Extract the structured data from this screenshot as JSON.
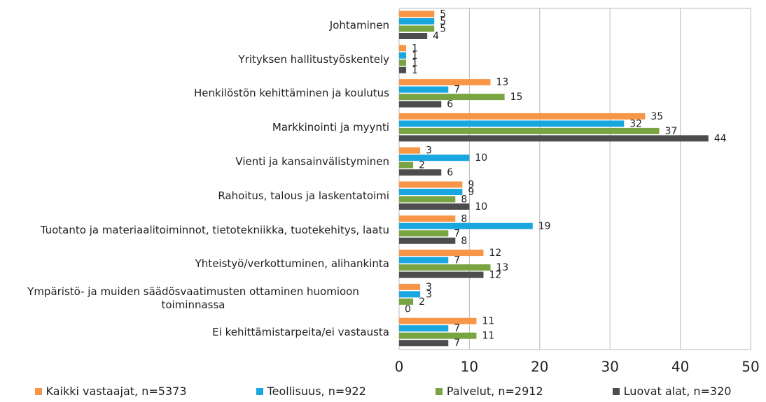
{
  "chart_data": {
    "type": "bar",
    "orientation": "horizontal",
    "categories": [
      "Johtaminen",
      "Yrityksen hallitustyöskentely",
      "Henkilöstön kehittäminen ja koulutus",
      "Markkinointi ja myynti",
      "Vienti ja kansainvälistyminen",
      "Rahoitus, talous ja laskentatoimi",
      "Tuotanto ja materiaalitoiminnot, tietotekniikka, tuotekehitys, laatu",
      "Yhteistyö/verkottuminen, alihankinta",
      "Ympäristö- ja muiden säädösvaatimusten ottaminen huomioon toiminnassa",
      "Ei kehittämistarpeita/ei vastausta"
    ],
    "series": [
      {
        "name": "Kaikki vastaajat, n=5373",
        "color": "#f79646",
        "values": [
          5,
          1,
          13,
          35,
          3,
          9,
          8,
          12,
          3,
          11
        ]
      },
      {
        "name": "Teollisuus, n=922",
        "color": "#1aa6df",
        "values": [
          5,
          1,
          7,
          32,
          10,
          9,
          19,
          7,
          3,
          7
        ]
      },
      {
        "name": "Palvelut, n=2912",
        "color": "#78a441",
        "values": [
          5,
          1,
          15,
          37,
          2,
          8,
          7,
          13,
          2,
          11
        ]
      },
      {
        "name": "Luovat alat, n=320",
        "color": "#4d4d4d",
        "values": [
          4,
          1,
          6,
          44,
          6,
          10,
          8,
          12,
          0,
          7
        ]
      }
    ],
    "xlim": [
      0,
      50
    ],
    "xticks": [
      0,
      10,
      20,
      30,
      40,
      50
    ],
    "grid": true
  }
}
